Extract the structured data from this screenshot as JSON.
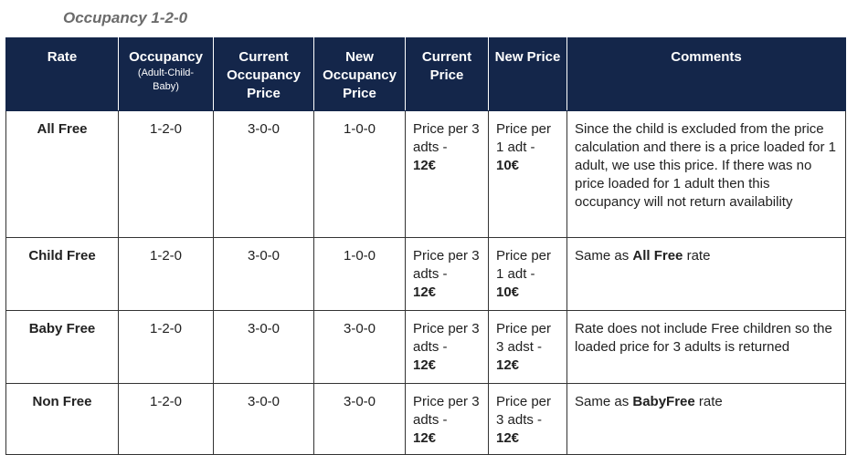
{
  "title": "Occupancy 1-2-0",
  "headers": {
    "rate": "Rate",
    "occupancy": "Occupancy",
    "occupancy_sub": "(Adult-Child-Baby)",
    "current_occupancy_price": "Current Occupancy Price",
    "new_occupancy_price": "New Occupancy Price",
    "current_price": "Current Price",
    "new_price": "New Price",
    "comments": "Comments"
  },
  "rows": [
    {
      "rate": "All Free",
      "occupancy": "1-2-0",
      "current_occ": "3-0-0",
      "new_occ": "1-0-0",
      "current_price_text": "Price per 3 adts -",
      "current_price_value": "12€",
      "new_price_text": "Price per 1 adt -",
      "new_price_value": "10€",
      "comment": "Since the child is excluded from the price calculation and there is a price loaded for 1 adult, we use this price. If there was no price loaded for 1 adult then this occupancy will not return availability"
    },
    {
      "rate": "Child Free",
      "occupancy": "1-2-0",
      "current_occ": "3-0-0",
      "new_occ": "1-0-0",
      "current_price_text": "Price per 3 adts -",
      "current_price_value": "12€",
      "new_price_text": "Price per 1 adt -",
      "new_price_value": "10€",
      "comment_pre": "Same as ",
      "comment_bold": "All Free",
      "comment_post": " rate"
    },
    {
      "rate": "Baby Free",
      "occupancy": "1-2-0",
      "current_occ": "3-0-0",
      "new_occ": "3-0-0",
      "current_price_text": "Price per 3 adts -",
      "current_price_value": "12€",
      "new_price_text": "Price per 3 adst -",
      "new_price_value": "12€",
      "comment": "Rate does not include Free children so the loaded price for 3 adults is returned"
    },
    {
      "rate": "Non Free",
      "occupancy": "1-2-0",
      "current_occ": "3-0-0",
      "new_occ": "3-0-0",
      "current_price_text": "Price per 3 adts -",
      "current_price_value": "12€",
      "new_price_text": "Price per 3 adts -",
      "new_price_value": "12€",
      "comment_pre": "Same as ",
      "comment_bold": "BabyFree",
      "comment_post": " rate"
    }
  ]
}
